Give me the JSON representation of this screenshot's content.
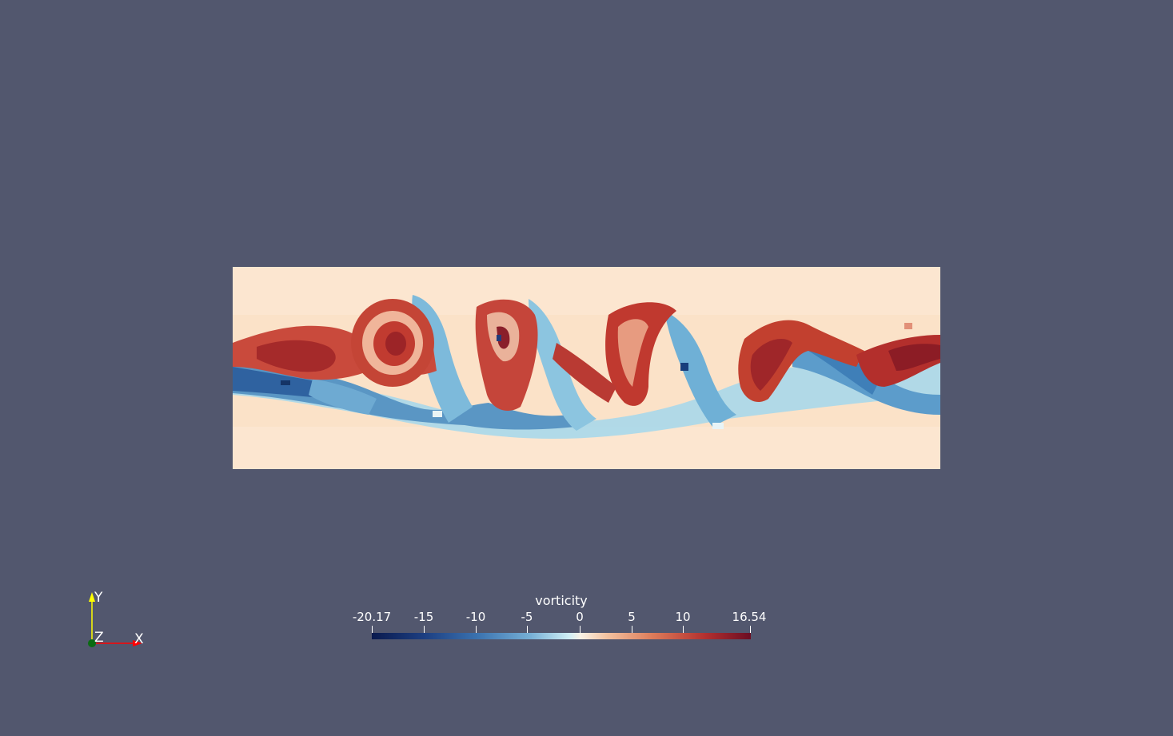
{
  "viewport": {
    "background": "#52576e"
  },
  "field": {
    "colormap": "blue-to-red diverging",
    "background": "#fbe2c8"
  },
  "scalar_bar": {
    "title": "vorticity",
    "ticks": [
      "-20.17",
      "-15",
      "-10",
      "-5",
      "0",
      "5",
      "10",
      "16.54"
    ],
    "range": [
      -20.17,
      16.54
    ]
  },
  "orientation_axes": {
    "y_label": "Y",
    "z_label": "Z",
    "x_label": "X",
    "y_color": "#ffff00",
    "x_color": "#ff0000",
    "z_color": "#00aa00"
  }
}
